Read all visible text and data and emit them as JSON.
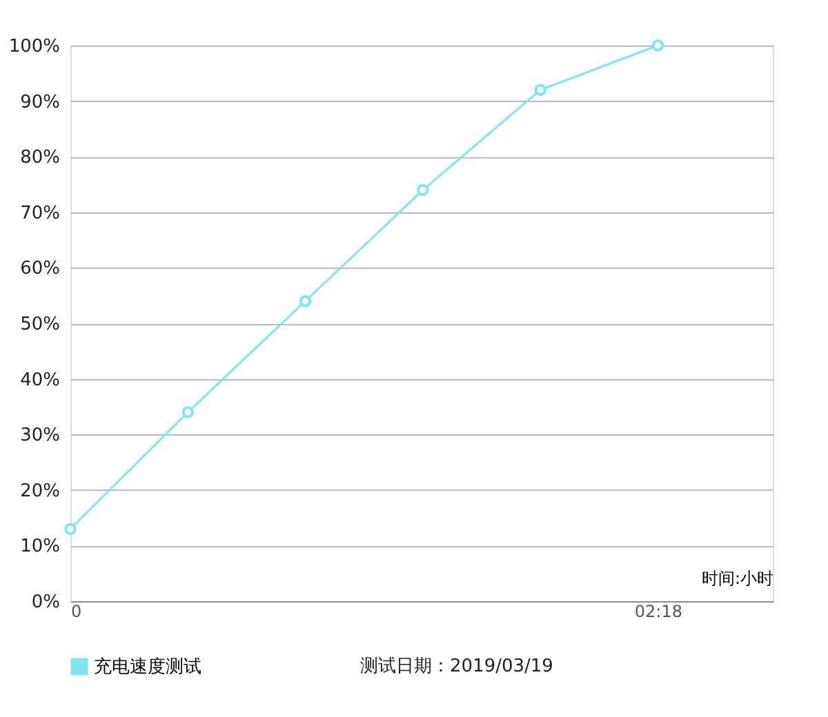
{
  "chart_data": {
    "type": "line",
    "xlabel": "时间:小时",
    "x": [
      0,
      0.46,
      0.92,
      1.38,
      1.84,
      2.3
    ],
    "series": [
      {
        "name": "充电速度测试",
        "color": "#7fe6f0",
        "values": [
          13,
          34,
          54,
          74,
          92,
          100
        ]
      }
    ],
    "xlim": [
      0,
      2.75
    ],
    "xticks": [
      0,
      {
        "value": 2.3,
        "label": "02:18"
      }
    ],
    "ylim": [
      0,
      100
    ],
    "yticks": [
      {
        "value": 0,
        "label": "0%"
      },
      {
        "value": 10,
        "label": "10%"
      },
      {
        "value": 20,
        "label": "20%"
      },
      {
        "value": 30,
        "label": "30%"
      },
      {
        "value": 40,
        "label": "40%"
      },
      {
        "value": 50,
        "label": "50%"
      },
      {
        "value": 60,
        "label": "60%"
      },
      {
        "value": 70,
        "label": "70%"
      },
      {
        "value": 80,
        "label": "80%"
      },
      {
        "value": 90,
        "label": "90%"
      },
      {
        "value": 100,
        "label": "100%"
      }
    ],
    "grid": "y",
    "legend": "bottom",
    "marker": "circle",
    "line_style": "solid",
    "annotations": [
      "测试日期：2019/03/19"
    ]
  }
}
